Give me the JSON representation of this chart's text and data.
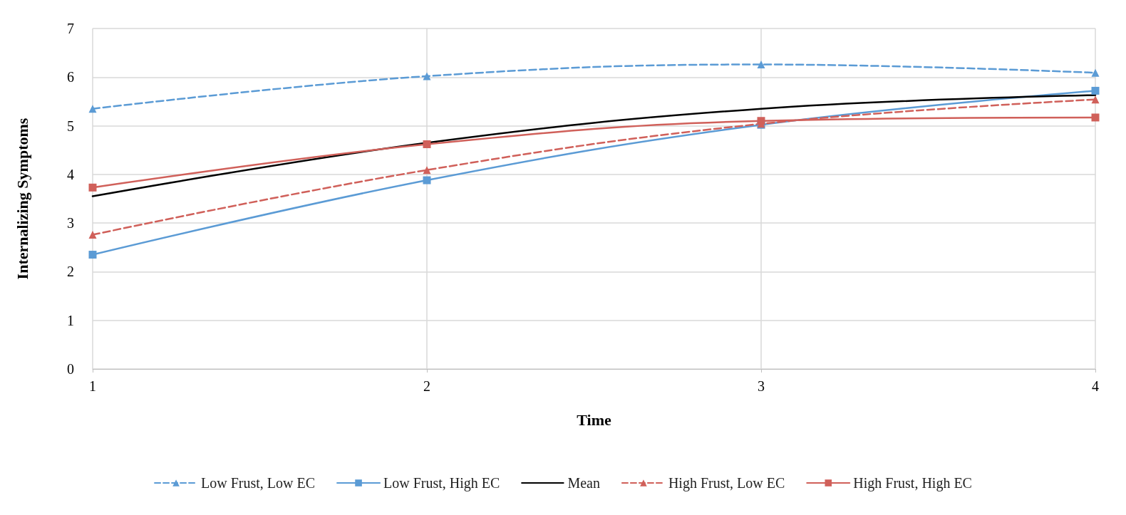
{
  "chart_data": {
    "type": "line",
    "xlabel": "Time",
    "ylabel": "Internalizing Symptoms",
    "x": [
      1,
      2,
      3,
      4
    ],
    "xlim": [
      1,
      4
    ],
    "xticks": [
      1,
      2,
      3,
      4
    ],
    "ylim": [
      0,
      7
    ],
    "yticks": [
      0,
      1,
      2,
      3,
      4,
      5,
      6,
      7
    ],
    "grid": true,
    "legend": "bottom",
    "series": [
      {
        "name": "Low Frust, Low EC",
        "color": "#5b9bd5",
        "values": [
          5.35,
          6.02,
          6.26,
          6.09
        ],
        "marker": "triangle",
        "line_style": "dashed"
      },
      {
        "name": "Low Frust, High EC",
        "color": "#5b9bd5",
        "values": [
          2.35,
          3.88,
          5.02,
          5.72
        ],
        "marker": "square",
        "line_style": "solid"
      },
      {
        "name": "Mean",
        "color": "#000000",
        "values": [
          3.55,
          4.65,
          5.35,
          5.63
        ],
        "marker": "none",
        "line_style": "solid"
      },
      {
        "name": "High Frust, Low EC",
        "color": "#d0605a",
        "values": [
          2.76,
          4.09,
          5.04,
          5.54
        ],
        "marker": "triangle",
        "line_style": "dashed"
      },
      {
        "name": "High Frust, High EC",
        "color": "#d0605a",
        "values": [
          3.73,
          4.62,
          5.1,
          5.17
        ],
        "marker": "square",
        "line_style": "solid"
      }
    ]
  }
}
